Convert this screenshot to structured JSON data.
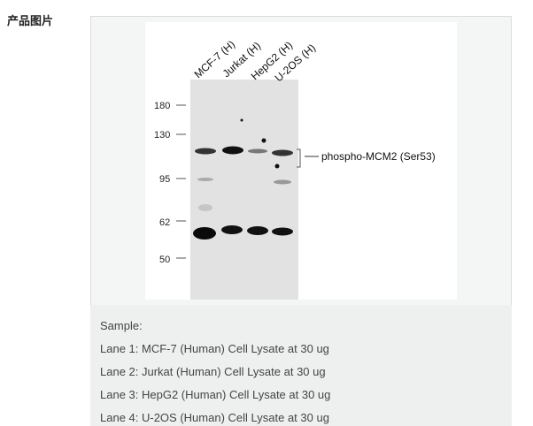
{
  "section_label": "产品图片",
  "blot": {
    "lanes": [
      "MCF-7 (H)",
      "Jurkat (H)",
      "HepG2 (H)",
      "U-2OS (H)"
    ],
    "markers": [
      "180",
      "130",
      "95",
      "62",
      "50"
    ],
    "band_label": "phospho-MCM2 (Ser53)"
  },
  "caption": {
    "lines": [
      "Sample:",
      "Lane 1: MCF-7 (Human) Cell Lysate at 30 ug",
      "Lane 2: Jurkat (Human) Cell Lysate at 30 ug",
      "Lane 3: HepG2 (Human) Cell Lysate at 30 ug",
      "Lane 4: U-2OS (Human) Cell Lysate at 30 ug"
    ]
  }
}
